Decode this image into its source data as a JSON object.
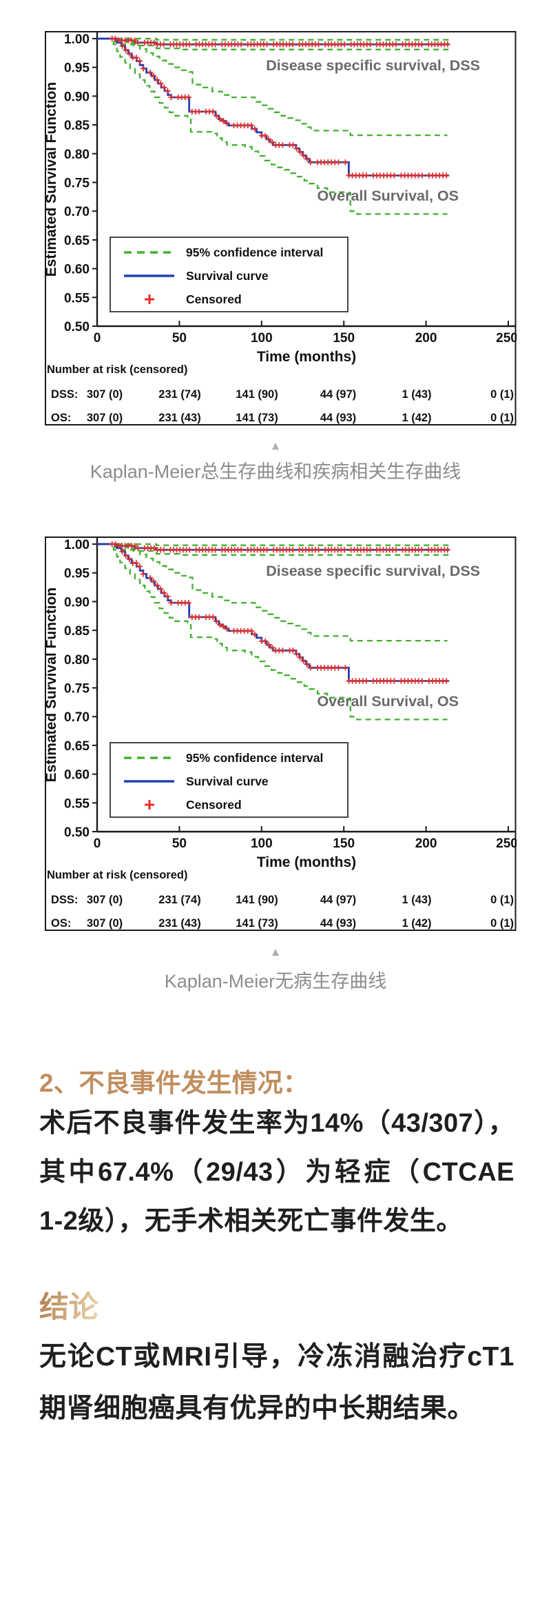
{
  "figures": [
    {
      "expander": "▲",
      "caption": "Kaplan-Meier总生存曲线和疾病相关生存曲线"
    },
    {
      "expander": "▲",
      "caption": "Kaplan-Meier无病生存曲线"
    }
  ],
  "sections": {
    "adverse": {
      "heading": "2、不良事件发生情况：",
      "body": "术后不良事件发生率为14%（43/307），其中67.4%（29/43）为轻症（CTCAE 1-2级），无手术相关死亡事件发生。"
    },
    "conclusion": {
      "heading": "结论",
      "body": "无论CT或MRI引导，冷冻消融治疗cT1期肾细胞癌具有优异的中长期结果。"
    }
  },
  "colors": {
    "accent_heading": "#c08e5e",
    "gold_from": "#b9895a",
    "gold_to": "#e6cda6",
    "caption": "#8c8c8c",
    "triangle": "#aeaeae",
    "km_blue": "#2140b4",
    "km_green": "#41b02e",
    "km_red": "#e82e24",
    "chart_label_gray": "#6a6a6a"
  },
  "chart_data": [
    {
      "type": "line",
      "subtype": "kaplan-meier-step",
      "title": "",
      "xlabel": "Time (months)",
      "ylabel": "Estimated Survival Function",
      "xlim": [
        0,
        250
      ],
      "ylim": [
        0.5,
        1.0
      ],
      "xticks": [
        0,
        50,
        100,
        150,
        200,
        250
      ],
      "yticks": [
        1.0,
        0.95,
        0.9,
        0.85,
        0.8,
        0.75,
        0.7,
        0.65,
        0.6,
        0.55,
        0.5
      ],
      "grid": false,
      "legend_position": "lower-left-inside",
      "legend": [
        "95% confidence interval",
        "Survival curve",
        "Censored"
      ],
      "annotations": [
        "Disease specific survival, DSS",
        "Overall Survival, OS"
      ],
      "series": [
        {
          "name": "DSS survival curve",
          "style": "curve",
          "points": [
            [
              0,
              1.0
            ],
            [
              9,
              1.0
            ],
            [
              11,
              0.997
            ],
            [
              21,
              0.997
            ],
            [
              23,
              0.993
            ],
            [
              34,
              0.993
            ],
            [
              36,
              0.99
            ],
            [
              214,
              0.99
            ]
          ]
        },
        {
          "name": "DSS 95% CI upper",
          "style": "ci",
          "points": [
            [
              0,
              1.0
            ],
            [
              30,
              1.0
            ],
            [
              36,
              0.998
            ],
            [
              214,
              0.998
            ]
          ]
        },
        {
          "name": "DSS 95% CI lower",
          "style": "ci",
          "points": [
            [
              0,
              1.0
            ],
            [
              9,
              0.995
            ],
            [
              13,
              0.99
            ],
            [
              23,
              0.988
            ],
            [
              36,
              0.983
            ],
            [
              50,
              0.981
            ],
            [
              214,
              0.981
            ]
          ]
        },
        {
          "name": "OS survival curve",
          "style": "curve",
          "points": [
            [
              0,
              1.0
            ],
            [
              10,
              1.0
            ],
            [
              12,
              0.993
            ],
            [
              15,
              0.987
            ],
            [
              17,
              0.98
            ],
            [
              19,
              0.974
            ],
            [
              21,
              0.967
            ],
            [
              24,
              0.961
            ],
            [
              26,
              0.954
            ],
            [
              28,
              0.948
            ],
            [
              30,
              0.941
            ],
            [
              33,
              0.935
            ],
            [
              35,
              0.928
            ],
            [
              37,
              0.922
            ],
            [
              39,
              0.915
            ],
            [
              41,
              0.909
            ],
            [
              43,
              0.902
            ],
            [
              45,
              0.898
            ],
            [
              55,
              0.898
            ],
            [
              56,
              0.873
            ],
            [
              70,
              0.873
            ],
            [
              72,
              0.866
            ],
            [
              74,
              0.86
            ],
            [
              76,
              0.857
            ],
            [
              78,
              0.853
            ],
            [
              80,
              0.849
            ],
            [
              91,
              0.849
            ],
            [
              94,
              0.843
            ],
            [
              97,
              0.837
            ],
            [
              100,
              0.831
            ],
            [
              103,
              0.825
            ],
            [
              105,
              0.82
            ],
            [
              107,
              0.815
            ],
            [
              119,
              0.815
            ],
            [
              121,
              0.809
            ],
            [
              123,
              0.803
            ],
            [
              125,
              0.797
            ],
            [
              127,
              0.791
            ],
            [
              129,
              0.785
            ],
            [
              152,
              0.785
            ],
            [
              153,
              0.762
            ],
            [
              214,
              0.762
            ]
          ]
        },
        {
          "name": "OS 95% CI upper",
          "style": "ci",
          "points": [
            [
              0,
              1.0
            ],
            [
              14,
              1.0
            ],
            [
              18,
              0.994
            ],
            [
              22,
              0.988
            ],
            [
              26,
              0.982
            ],
            [
              30,
              0.975
            ],
            [
              34,
              0.969
            ],
            [
              38,
              0.962
            ],
            [
              42,
              0.956
            ],
            [
              46,
              0.95
            ],
            [
              50,
              0.945
            ],
            [
              56,
              0.942
            ],
            [
              58,
              0.92
            ],
            [
              64,
              0.915
            ],
            [
              70,
              0.908
            ],
            [
              76,
              0.902
            ],
            [
              80,
              0.898
            ],
            [
              92,
              0.898
            ],
            [
              96,
              0.89
            ],
            [
              100,
              0.884
            ],
            [
              104,
              0.878
            ],
            [
              108,
              0.872
            ],
            [
              112,
              0.866
            ],
            [
              116,
              0.862
            ],
            [
              120,
              0.858
            ],
            [
              124,
              0.852
            ],
            [
              128,
              0.846
            ],
            [
              130,
              0.84
            ],
            [
              152,
              0.84
            ],
            [
              154,
              0.832
            ],
            [
              213,
              0.832
            ]
          ]
        },
        {
          "name": "OS 95% CI lower",
          "style": "ci",
          "points": [
            [
              0,
              1.0
            ],
            [
              10,
              0.99
            ],
            [
              12,
              0.978
            ],
            [
              14,
              0.968
            ],
            [
              17,
              0.958
            ],
            [
              20,
              0.948
            ],
            [
              23,
              0.938
            ],
            [
              26,
              0.928
            ],
            [
              29,
              0.918
            ],
            [
              32,
              0.908
            ],
            [
              35,
              0.898
            ],
            [
              38,
              0.888
            ],
            [
              41,
              0.88
            ],
            [
              44,
              0.872
            ],
            [
              47,
              0.866
            ],
            [
              55,
              0.862
            ],
            [
              57,
              0.838
            ],
            [
              70,
              0.835
            ],
            [
              73,
              0.827
            ],
            [
              76,
              0.82
            ],
            [
              79,
              0.815
            ],
            [
              90,
              0.812
            ],
            [
              94,
              0.804
            ],
            [
              98,
              0.796
            ],
            [
              102,
              0.788
            ],
            [
              106,
              0.781
            ],
            [
              110,
              0.776
            ],
            [
              114,
              0.772
            ],
            [
              118,
              0.766
            ],
            [
              122,
              0.76
            ],
            [
              126,
              0.753
            ],
            [
              129,
              0.748
            ],
            [
              134,
              0.74
            ],
            [
              140,
              0.733
            ],
            [
              152,
              0.732
            ],
            [
              154,
              0.7
            ],
            [
              158,
              0.695
            ],
            [
              213,
              0.695
            ]
          ]
        }
      ],
      "censored": {
        "dss": {
          "from": 10,
          "to": 214,
          "count": 92
        },
        "os": {
          "from": 12,
          "to": 213,
          "count": 84
        }
      },
      "number_at_risk": {
        "title": "Number at risk (censored)",
        "columns": [
          0,
          50,
          100,
          150,
          200,
          250
        ],
        "rows": [
          {
            "label": "DSS:",
            "values": [
              "307 (0)",
              "231 (74)",
              "141 (90)",
              "44 (97)",
              "1 (43)",
              "0 (1)"
            ]
          },
          {
            "label": "OS:",
            "values": [
              "307 (0)",
              "231 (43)",
              "141 (73)",
              "44 (93)",
              "1 (42)",
              "0 (1)"
            ]
          }
        ]
      }
    },
    {
      "note": "Second figure: plot content appears identical to the first figure",
      "same_as": 0
    }
  ]
}
